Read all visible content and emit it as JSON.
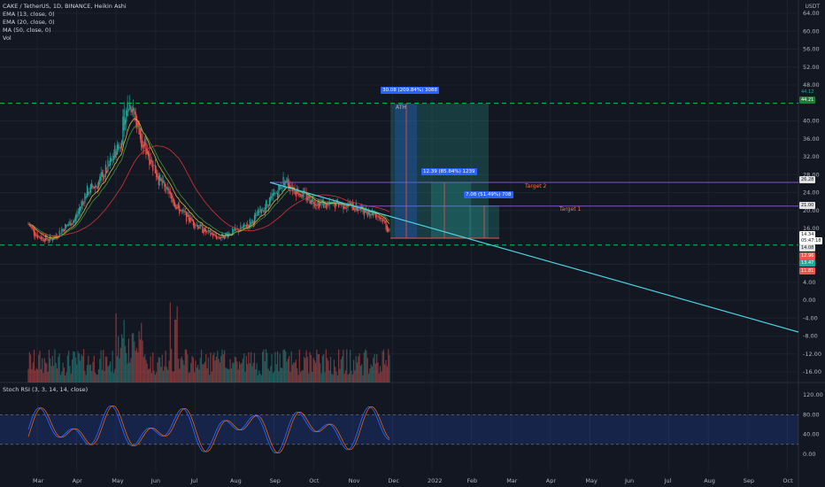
{
  "symbol_line": "CAKE / TetherUS, 1D, BINANCE, Heikin Ashi",
  "indicators": [
    "EMA (13, close, 0)",
    "EMA (20, close, 0)",
    "MA (50, close, 0)",
    "Vol"
  ],
  "rsi_label": "Stoch RSI (3, 3, 14, 14, close)",
  "currency": "USDT",
  "price_axis": [
    "64.00",
    "60.00",
    "56.00",
    "52.00",
    "48.00",
    "40.00",
    "36.00",
    "32.00",
    "28.00",
    "24.00",
    "20.00",
    "16.00",
    "8.00",
    "4.00",
    "0.00",
    "-4.00",
    "-8.00",
    "-12.00",
    "-16.00"
  ],
  "rsi_axis": [
    "120.00",
    "80.00",
    "40.00",
    "0.00"
  ],
  "time_axis": [
    "Mar",
    "Apr",
    "May",
    "Jun",
    "Jul",
    "Aug",
    "Sep",
    "Oct",
    "Nov",
    "Dec",
    "2022",
    "Feb",
    "Mar",
    "Apr",
    "May",
    "Jun",
    "Jul",
    "Aug",
    "Sep",
    "Oct"
  ],
  "tags": {
    "ath_measure": "30.08 (209.84%) 3088",
    "target2_measure": "12.39 (85.84%) 1239",
    "target1_measure": "7.08 (51.49%) 708",
    "ath": "ATH",
    "target2": "Target 2",
    "target1": "Target 1"
  },
  "price_tags": [
    {
      "text": "44.12",
      "color": "#26a69a"
    },
    {
      "text": "44.21",
      "color": "#1e7e34"
    },
    {
      "text": "26.28",
      "color": "#e0e0e0"
    },
    {
      "text": "21.00",
      "color": "#e0e0e0"
    },
    {
      "text": "14.34",
      "color": "#131722"
    },
    {
      "text": "05:47:18",
      "color": "#131722"
    },
    {
      "text": "14.08",
      "color": "#e0e0e0"
    },
    {
      "text": "12.96",
      "color": "#ef5350"
    },
    {
      "text": "13.47",
      "color": "#26a69a"
    },
    {
      "text": "11.81",
      "color": "#ef5350"
    }
  ],
  "colors": {
    "up": "#26a69a",
    "down": "#ef5350",
    "trend": "#4dd0e1",
    "ema13": "#f7c744",
    "ema20": "#43a047",
    "ma50": "#e53935",
    "level": "#7e57c2",
    "support": "#00c853"
  },
  "chart_data": {
    "type": "candlestick",
    "title": "CAKE / TetherUS, 1D, BINANCE, Heikin Ashi",
    "ylabel": "USDT",
    "ylim": [
      -16,
      64
    ],
    "x_start": "Mar 2021",
    "price_path": [
      [
        0,
        17
      ],
      [
        5,
        15
      ],
      [
        10,
        14
      ],
      [
        20,
        13.5
      ],
      [
        30,
        16
      ],
      [
        40,
        18
      ],
      [
        50,
        24
      ],
      [
        60,
        26
      ],
      [
        70,
        30
      ],
      [
        80,
        36
      ],
      [
        85,
        43
      ],
      [
        90,
        44
      ],
      [
        95,
        38
      ],
      [
        105,
        32
      ],
      [
        115,
        26
      ],
      [
        125,
        22
      ],
      [
        135,
        19
      ],
      [
        145,
        17
      ],
      [
        155,
        15
      ],
      [
        165,
        14
      ],
      [
        175,
        15
      ],
      [
        185,
        16
      ],
      [
        195,
        18
      ],
      [
        205,
        21
      ],
      [
        215,
        24
      ],
      [
        222,
        27
      ],
      [
        230,
        25
      ],
      [
        240,
        23
      ],
      [
        250,
        22
      ],
      [
        260,
        21
      ],
      [
        270,
        21.5
      ],
      [
        280,
        21
      ],
      [
        290,
        20
      ],
      [
        300,
        19.5
      ],
      [
        307,
        18
      ],
      [
        313,
        15
      ]
    ],
    "levels": {
      "ath": 44.12,
      "target2": 26.28,
      "target1": 21.0,
      "support": 14.08
    },
    "stoch_rsi": {
      "range": [
        0,
        100
      ],
      "band": [
        20,
        80
      ]
    }
  }
}
